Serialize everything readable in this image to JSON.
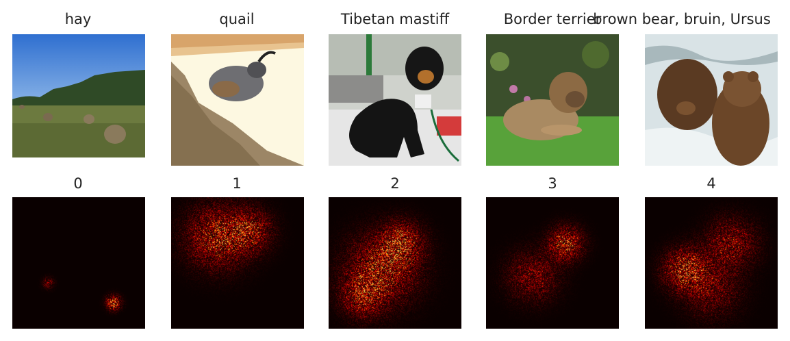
{
  "top_row": [
    {
      "label": "hay"
    },
    {
      "label": "quail"
    },
    {
      "label": "Tibetan mastiff"
    },
    {
      "label": "Border terrier"
    },
    {
      "label": "brown bear, bruin, Ursus"
    }
  ],
  "bottom_row": [
    {
      "label": "0"
    },
    {
      "label": "1"
    },
    {
      "label": "2"
    },
    {
      "label": "3"
    },
    {
      "label": "4"
    }
  ]
}
